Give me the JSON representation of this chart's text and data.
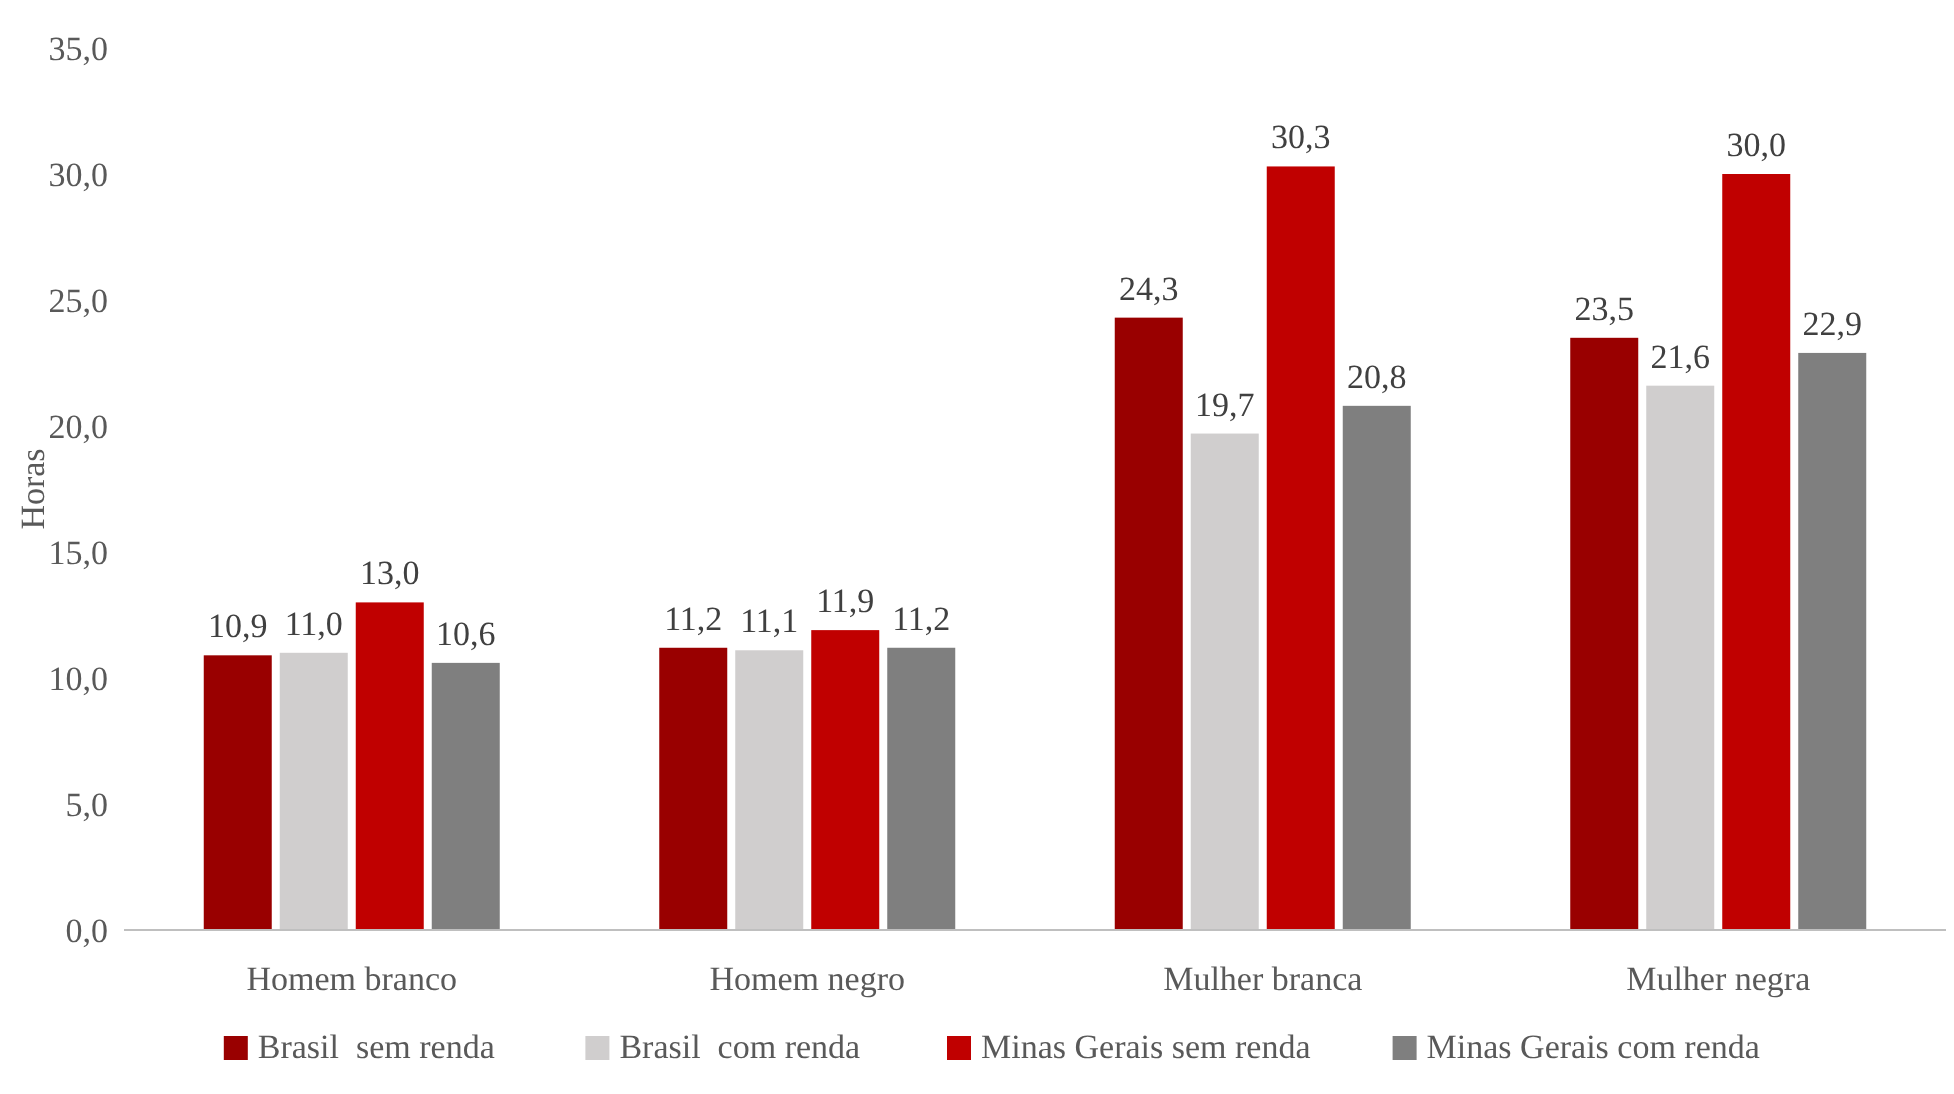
{
  "chart_data": {
    "type": "bar",
    "ylabel": "Horas",
    "categories": [
      "Homem branco",
      "Homem negro",
      "Mulher branca",
      "Mulher negra"
    ],
    "series": [
      {
        "name": "Brasil  sem renda",
        "color": "#990000",
        "values": [
          10.9,
          11.2,
          24.3,
          23.5
        ],
        "value_labels": [
          "10,9",
          "11,2",
          "24,3",
          "23,5"
        ]
      },
      {
        "name": "Brasil  com renda",
        "color": "#d0cece",
        "values": [
          11.0,
          11.1,
          19.7,
          21.6
        ],
        "value_labels": [
          "11,0",
          "11,1",
          "19,7",
          "21,6"
        ]
      },
      {
        "name": "Minas Gerais sem renda",
        "color": "#c00000",
        "values": [
          13.0,
          11.9,
          30.3,
          30.0
        ],
        "value_labels": [
          "13,0",
          "11,9",
          "30,3",
          "30,0"
        ]
      },
      {
        "name": "Minas Gerais com renda",
        "color": "#7f7f7f",
        "values": [
          10.6,
          11.2,
          20.8,
          22.9
        ],
        "value_labels": [
          "10,6",
          "11,2",
          "20,8",
          "22,9"
        ]
      }
    ],
    "ylim": [
      0,
      35
    ],
    "yticks": [
      {
        "value": 0,
        "label": "0,0"
      },
      {
        "value": 5,
        "label": "5,0"
      },
      {
        "value": 10,
        "label": "10,0"
      },
      {
        "value": 15,
        "label": "15,0"
      },
      {
        "value": 20,
        "label": "20,0"
      },
      {
        "value": 25,
        "label": "25,0"
      },
      {
        "value": 30,
        "label": "30,0"
      },
      {
        "value": 35,
        "label": "35,0"
      }
    ],
    "grid": false,
    "legend": "bottom"
  }
}
